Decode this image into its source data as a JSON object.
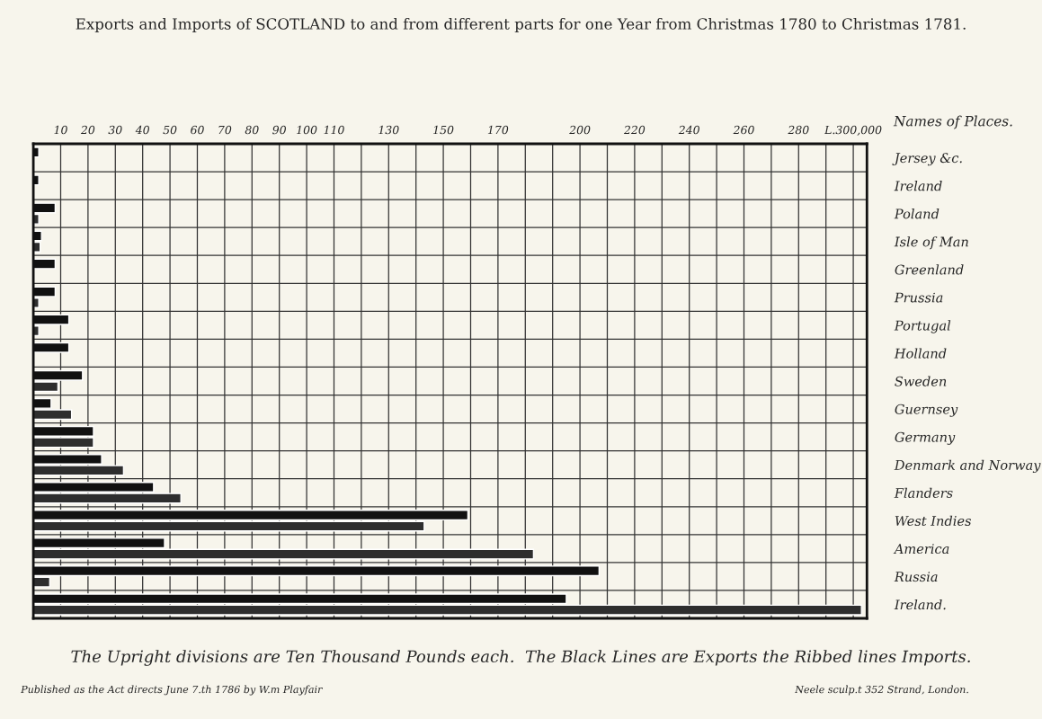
{
  "chart_data": {
    "type": "bar",
    "orientation": "horizontal",
    "title": "Exports and Imports of SCOTLAND to and from different parts for one Year from Christmas 1780 to Christmas 1781.",
    "ylabel": "Names of Places.",
    "categories": [
      "Jersey &c.",
      "Ireland",
      "Poland",
      "Isle of Man",
      "Greenland",
      "Prussia",
      "Portugal",
      "Holland",
      "Sweden",
      "Guernsey",
      "Germany",
      "Denmark and Norway",
      "Flanders",
      "West Indies",
      "America",
      "Russia",
      "Ireland."
    ],
    "series": [
      {
        "color": "#111111",
        "values": [
          2,
          2,
          8,
          3,
          8,
          8,
          13,
          13,
          18,
          6.5,
          22,
          25,
          44,
          159,
          48,
          207,
          195
        ]
      },
      {
        "color": "#2e2e2e",
        "values": [
          null,
          null,
          2,
          2.5,
          null,
          2,
          2,
          null,
          9,
          14,
          22,
          33,
          54,
          143,
          183,
          6,
          303
        ]
      }
    ],
    "xlim": [
      0,
      305
    ],
    "xticks": [
      10,
      20,
      30,
      40,
      50,
      60,
      70,
      80,
      90,
      100,
      110,
      {
        "value": 120,
        "label": null
      },
      130,
      {
        "value": 140,
        "label": null
      },
      150,
      {
        "value": 160,
        "label": null
      },
      170,
      {
        "value": 180,
        "label": null
      },
      {
        "value": 190,
        "label": null
      },
      200,
      {
        "value": 210,
        "label": null
      },
      220,
      {
        "value": 230,
        "label": null
      },
      240,
      {
        "value": 250,
        "label": null
      },
      260,
      {
        "value": 270,
        "label": null
      },
      280,
      {
        "value": 290,
        "label": null
      },
      {
        "value": 300,
        "label": "L.300,000"
      }
    ],
    "grid": true,
    "annotations": [
      "The Upright divisions are Ten Thousand Pounds each.  The Black Lines are Exports the Ribbed lines Imports.",
      "Published as the Act directs June 7.th 1786 by W.m Playfair",
      "Neele sculp.t 352 Strand, London."
    ]
  }
}
